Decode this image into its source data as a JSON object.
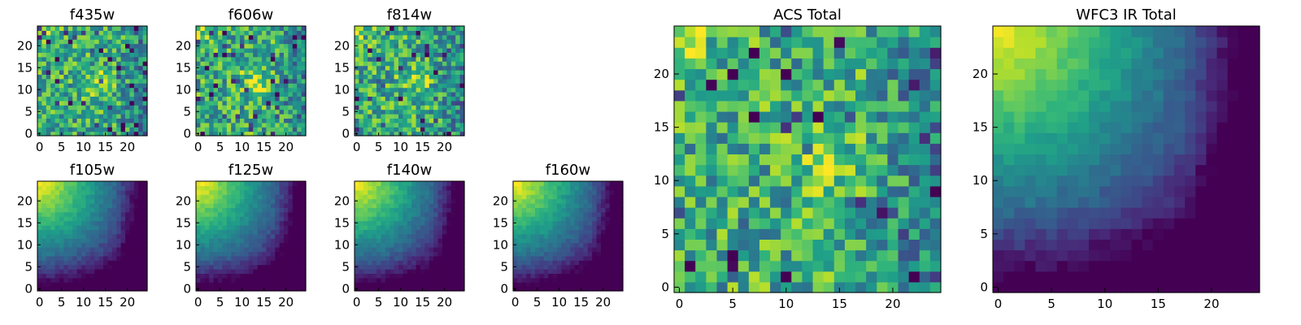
{
  "chart_data": [
    {
      "type": "heatmap",
      "title": "f435w",
      "xticks": [
        "0",
        "5",
        "10",
        "15",
        "20"
      ],
      "yticks": [
        "0",
        "5",
        "10",
        "15",
        "20"
      ],
      "xlim": [
        -0.5,
        24.5
      ],
      "ylim": [
        -0.5,
        24.5
      ],
      "size": 25,
      "colormap": "viridis",
      "style": "noisy"
    },
    {
      "type": "heatmap",
      "title": "f606w",
      "xticks": [
        "0",
        "5",
        "10",
        "15",
        "20"
      ],
      "yticks": [
        "0",
        "5",
        "10",
        "15",
        "20"
      ],
      "xlim": [
        -0.5,
        24.5
      ],
      "ylim": [
        -0.5,
        24.5
      ],
      "size": 25,
      "colormap": "viridis",
      "style": "noisy"
    },
    {
      "type": "heatmap",
      "title": "f814w",
      "xticks": [
        "0",
        "5",
        "10",
        "15",
        "20"
      ],
      "yticks": [
        "0",
        "5",
        "10",
        "15",
        "20"
      ],
      "xlim": [
        -0.5,
        24.5
      ],
      "ylim": [
        -0.5,
        24.5
      ],
      "size": 25,
      "colormap": "viridis",
      "style": "noisy"
    },
    {
      "type": "heatmap",
      "title": "f105w",
      "xticks": [
        "0",
        "5",
        "10",
        "15",
        "20"
      ],
      "yticks": [
        "0",
        "5",
        "10",
        "15",
        "20"
      ],
      "xlim": [
        -0.5,
        24.5
      ],
      "ylim": [
        -0.5,
        24.5
      ],
      "size": 25,
      "colormap": "viridis",
      "style": "smooth"
    },
    {
      "type": "heatmap",
      "title": "f125w",
      "xticks": [
        "0",
        "5",
        "10",
        "15",
        "20"
      ],
      "yticks": [
        "0",
        "5",
        "10",
        "15",
        "20"
      ],
      "xlim": [
        -0.5,
        24.5
      ],
      "ylim": [
        -0.5,
        24.5
      ],
      "size": 25,
      "colormap": "viridis",
      "style": "smooth"
    },
    {
      "type": "heatmap",
      "title": "f140w",
      "xticks": [
        "0",
        "5",
        "10",
        "15",
        "20"
      ],
      "yticks": [
        "0",
        "5",
        "10",
        "15",
        "20"
      ],
      "xlim": [
        -0.5,
        24.5
      ],
      "ylim": [
        -0.5,
        24.5
      ],
      "size": 25,
      "colormap": "viridis",
      "style": "smooth"
    },
    {
      "type": "heatmap",
      "title": "f160w",
      "xticks": [
        "0",
        "5",
        "10",
        "15",
        "20"
      ],
      "yticks": [
        "0",
        "5",
        "10",
        "15",
        "20"
      ],
      "xlim": [
        -0.5,
        24.5
      ],
      "ylim": [
        -0.5,
        24.5
      ],
      "size": 25,
      "colormap": "viridis",
      "style": "smooth"
    },
    {
      "type": "heatmap",
      "title": "ACS Total",
      "xticks": [
        "0",
        "5",
        "10",
        "15",
        "20"
      ],
      "yticks": [
        "0",
        "5",
        "10",
        "15",
        "20"
      ],
      "xlim": [
        -0.5,
        24.5
      ],
      "ylim": [
        -0.5,
        24.5
      ],
      "size": 25,
      "colormap": "viridis",
      "style": "noisy"
    },
    {
      "type": "heatmap",
      "title": "WFC3 IR Total",
      "xticks": [
        "0",
        "5",
        "10",
        "15",
        "20"
      ],
      "yticks": [
        "0",
        "5",
        "10",
        "15",
        "20"
      ],
      "xlim": [
        -0.5,
        24.5
      ],
      "ylim": [
        -0.5,
        24.5
      ],
      "size": 25,
      "colormap": "viridis",
      "style": "smooth"
    }
  ]
}
